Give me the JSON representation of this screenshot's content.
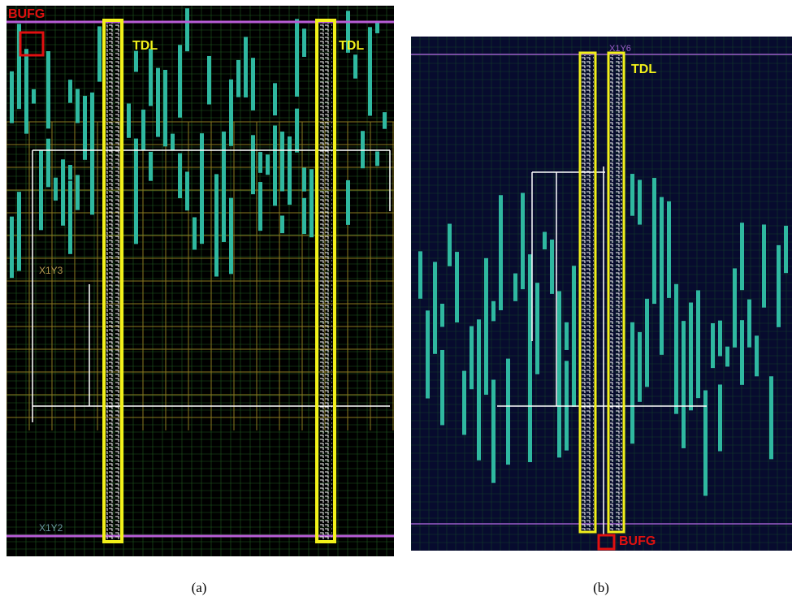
{
  "panel_a": {
    "bufg_label": "BUFG",
    "tdl_labels": [
      "TDL",
      "TDL"
    ],
    "region_labels": [
      "X1Y3",
      "X1Y2"
    ],
    "caption": "(a)"
  },
  "panel_b": {
    "region_label": "X1Y6",
    "tdl_label": "TDL",
    "bufg_label": "BUFG",
    "caption": "(b)"
  }
}
